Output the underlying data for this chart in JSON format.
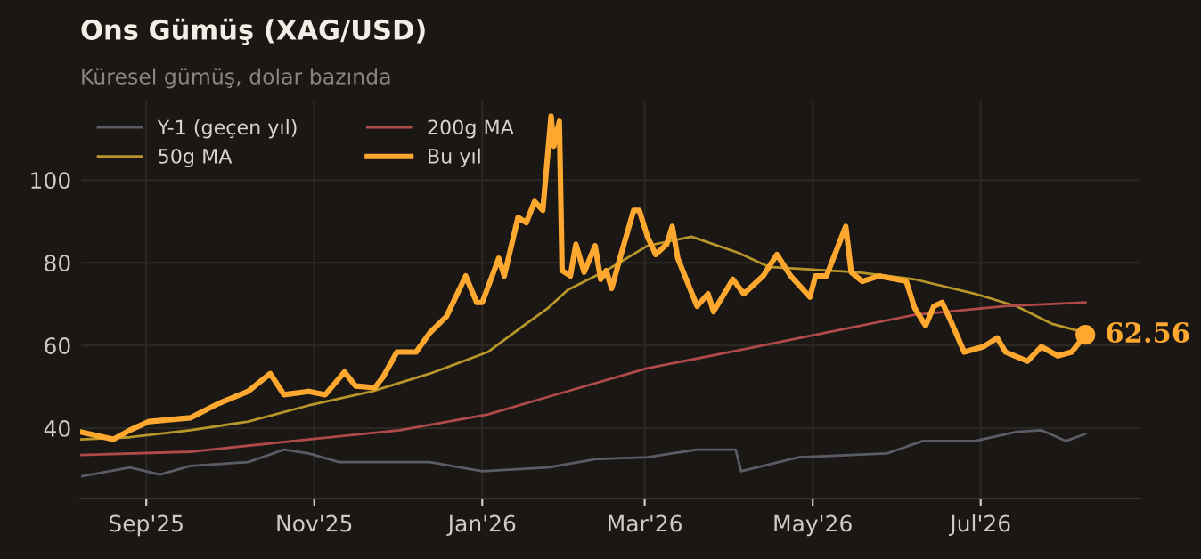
{
  "chart_data": {
    "type": "line",
    "title": "Ons Gümüş (XAG/USD)",
    "subtitle": "Küresel gümüş, dolar bazında",
    "xlim": [
      "2025-08-08",
      "2026-08-28"
    ],
    "xticks": [
      {
        "value": "2025-09-01",
        "label": "Sep'25"
      },
      {
        "value": "2025-11-01",
        "label": "Nov'25"
      },
      {
        "value": "2026-01-01",
        "label": "Jan'26"
      },
      {
        "value": "2026-03-01",
        "label": "Mar'26"
      },
      {
        "value": "2026-05-01",
        "label": "May'26"
      },
      {
        "value": "2026-07-01",
        "label": "Jul'26"
      }
    ],
    "ylim": [
      23,
      119
    ],
    "yticks": [
      40,
      60,
      80,
      100
    ],
    "grid": true,
    "legend": "top left",
    "series": [
      {
        "name": "Y-1 (geçen yıl)",
        "color": "#5a5d66",
        "x": [
          "2025-08-08",
          "2025-08-26",
          "2025-09-06",
          "2025-09-17",
          "2025-10-08",
          "2025-10-21",
          "2025-10-30",
          "2025-11-10",
          "2025-12-13",
          "2026-01-01",
          "2026-01-25",
          "2026-02-11",
          "2026-02-10",
          "2026-03-02",
          "2026-03-20",
          "2026-04-03",
          "2026-04-05",
          "2026-04-26",
          "2026-05-28",
          "2026-06-10",
          "2026-06-29",
          "2026-07-14",
          "2026-07-23",
          "2026-08-01",
          "2026-08-08"
        ],
        "values": [
          28.3,
          30.5,
          28.8,
          30.9,
          31.8,
          34.8,
          33.9,
          31.8,
          31.8,
          29.6,
          30.5,
          32.5,
          32.5,
          33.0,
          34.8,
          34.8,
          29.6,
          33.0,
          33.9,
          36.9,
          36.9,
          39.1,
          39.5,
          36.9,
          38.6
        ]
      },
      {
        "name": "50g MA",
        "color": "#b8962a",
        "x": [
          "2025-08-08",
          "2025-08-26",
          "2025-09-17",
          "2025-10-08",
          "2025-10-30",
          "2025-11-22",
          "2025-12-13",
          "2026-01-03",
          "2026-01-16",
          "2026-01-25",
          "2026-02-01",
          "2026-02-15",
          "2026-03-02",
          "2026-03-18",
          "2026-04-04",
          "2026-04-15",
          "2026-05-17",
          "2026-06-07",
          "2026-06-29",
          "2026-07-14",
          "2026-07-27",
          "2026-08-08"
        ],
        "values": [
          37.3,
          37.8,
          39.5,
          41.6,
          45.5,
          48.9,
          53.2,
          58.4,
          64.8,
          69.1,
          73.4,
          78.1,
          84.1,
          86.3,
          82.4,
          79.0,
          77.7,
          76.0,
          72.5,
          69.5,
          65.2,
          63.1
        ]
      },
      {
        "name": "200g MA",
        "color": "#b04a4a",
        "x": [
          "2025-08-08",
          "2025-09-17",
          "2025-10-30",
          "2025-12-02",
          "2026-01-03",
          "2026-01-25",
          "2026-03-02",
          "2026-04-04",
          "2026-05-06",
          "2026-06-07",
          "2026-07-10",
          "2026-08-08"
        ],
        "values": [
          33.5,
          34.3,
          37.3,
          39.5,
          43.3,
          47.6,
          54.5,
          58.8,
          63.1,
          67.4,
          69.5,
          70.4
        ]
      },
      {
        "name": "Bu yıl",
        "color": "#ffa830",
        "x": [
          "2025-08-08",
          "2025-08-20",
          "2025-08-26",
          "2025-09-02",
          "2025-09-17",
          "2025-09-27",
          "2025-10-08",
          "2025-10-16",
          "2025-10-21",
          "2025-10-30",
          "2025-11-05",
          "2025-11-12",
          "2025-11-16",
          "2025-11-23",
          "2025-11-26",
          "2025-12-01",
          "2025-12-08",
          "2025-12-13",
          "2025-12-19",
          "2025-12-26",
          "2025-12-30",
          "2026-01-01",
          "2026-01-07",
          "2026-01-09",
          "2026-01-14",
          "2026-01-17",
          "2026-01-20",
          "2026-01-23",
          "2026-01-26",
          "2026-01-27",
          "2026-01-29",
          "2026-01-30",
          "2026-02-02",
          "2026-02-04",
          "2026-02-07",
          "2026-02-11",
          "2026-02-13",
          "2026-02-15",
          "2026-02-17",
          "2026-02-20",
          "2026-02-25",
          "2026-02-27",
          "2026-03-02",
          "2026-03-05",
          "2026-03-09",
          "2026-03-11",
          "2026-03-13",
          "2026-03-20",
          "2026-03-24",
          "2026-03-26",
          "2026-04-02",
          "2026-04-06",
          "2026-04-13",
          "2026-04-18",
          "2026-04-23",
          "2026-04-30",
          "2026-05-02",
          "2026-05-06",
          "2026-05-13",
          "2026-05-15",
          "2026-05-19",
          "2026-05-25",
          "2026-06-04",
          "2026-06-07",
          "2026-06-11",
          "2026-06-14",
          "2026-06-17",
          "2026-06-20",
          "2026-06-25",
          "2026-07-02",
          "2026-07-07",
          "2026-07-10",
          "2026-07-18",
          "2026-07-23",
          "2026-07-29",
          "2026-08-03",
          "2026-08-08"
        ],
        "values": [
          39.1,
          37.3,
          39.5,
          41.6,
          42.5,
          45.9,
          48.9,
          53.2,
          48.1,
          48.9,
          48.1,
          53.6,
          50.2,
          49.8,
          52.4,
          58.4,
          58.4,
          63.1,
          67.0,
          76.8,
          70.4,
          70.4,
          81.1,
          76.8,
          91.0,
          89.7,
          94.8,
          92.7,
          115.5,
          108.2,
          114.2,
          78.1,
          76.8,
          84.5,
          77.7,
          84.1,
          76.0,
          78.1,
          73.8,
          81.1,
          92.7,
          92.7,
          86.3,
          82.0,
          84.5,
          88.8,
          81.1,
          69.5,
          72.5,
          68.2,
          76.0,
          72.5,
          76.8,
          82.0,
          76.8,
          71.7,
          76.8,
          76.8,
          88.8,
          77.7,
          75.5,
          76.8,
          75.5,
          69.1,
          64.8,
          69.5,
          70.4,
          66.1,
          58.4,
          59.7,
          61.8,
          58.4,
          56.2,
          59.7,
          57.5,
          58.4,
          62.56
        ]
      }
    ],
    "annotations": [
      {
        "text": "62.56",
        "x": "2026-08-08",
        "y": 62.56
      }
    ]
  }
}
